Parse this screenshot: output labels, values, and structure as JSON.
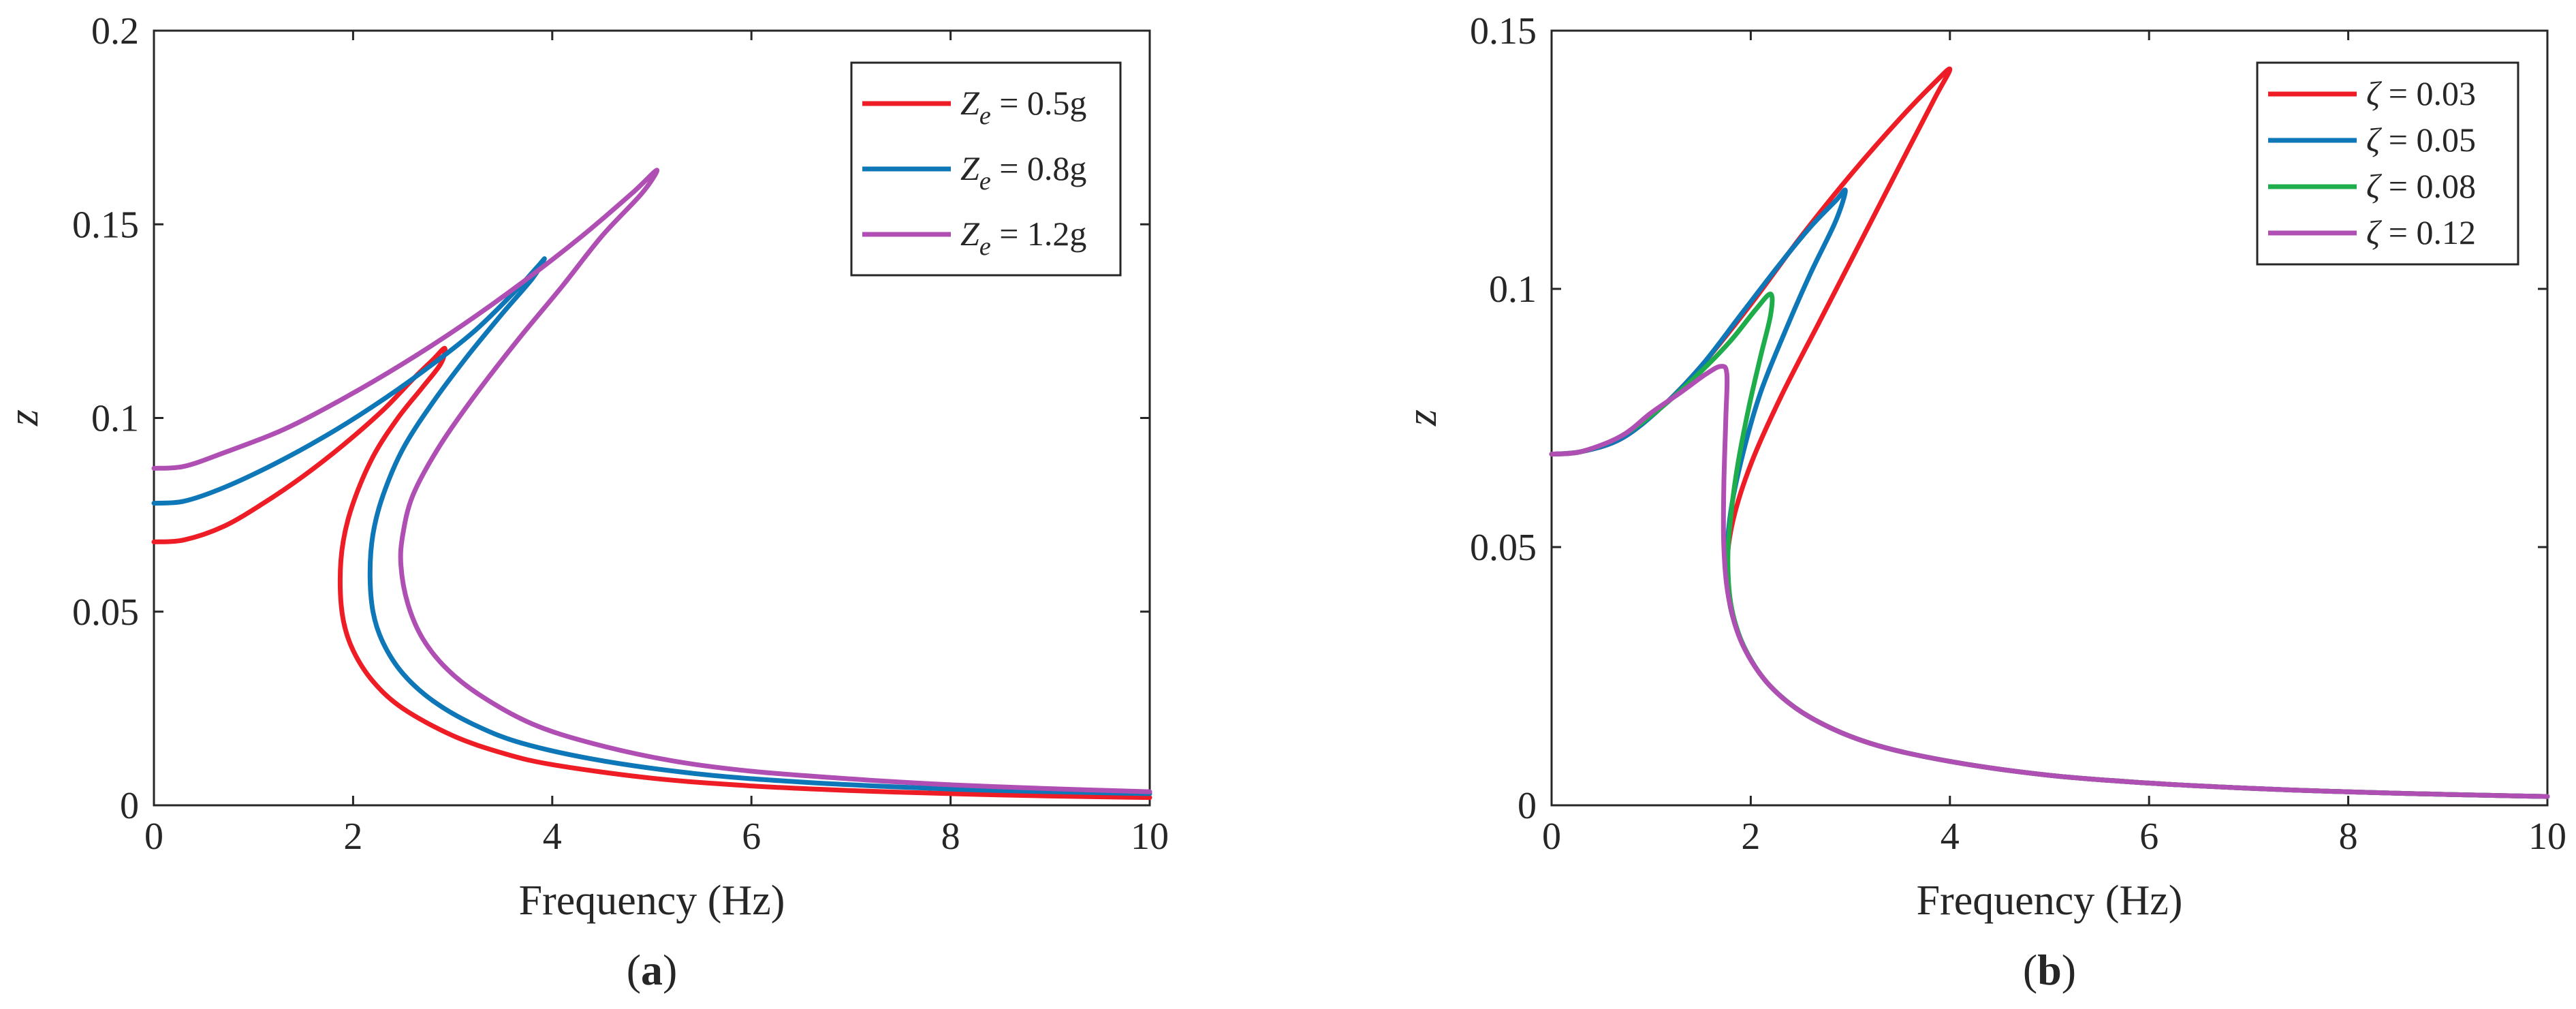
{
  "colors": {
    "red": "#ee1c25",
    "blue": "#0d77b7",
    "green": "#1fad4b",
    "purple": "#b04fb3"
  },
  "chart_data": [
    {
      "type": "line",
      "panel_label": "a",
      "xlabel": "Frequency (Hz)",
      "ylabel": "z",
      "xlim": [
        0,
        10
      ],
      "ylim": [
        0,
        0.2
      ],
      "xticks": [
        "0",
        "2",
        "4",
        "6",
        "8",
        "10"
      ],
      "yticks": [
        "0",
        "0.05",
        "0.1",
        "0.15",
        "0.2"
      ],
      "grid": false,
      "legend_position": "top-right",
      "series": [
        {
          "name": "Z_e = 0.5g",
          "legend_main": "Z",
          "legend_sub": "e",
          "legend_rest": " = 0.5g",
          "color": "#ee1c25",
          "points": [
            [
              0,
              0.068
            ],
            [
              0.3,
              0.0685
            ],
            [
              0.7,
              0.072
            ],
            [
              1.1,
              0.078
            ],
            [
              1.5,
              0.085
            ],
            [
              1.9,
              0.093
            ],
            [
              2.3,
              0.102
            ],
            [
              2.6,
              0.11
            ],
            [
              2.8,
              0.115
            ],
            [
              2.92,
              0.118
            ],
            [
              2.88,
              0.114
            ],
            [
              2.7,
              0.108
            ],
            [
              2.45,
              0.1
            ],
            [
              2.2,
              0.09
            ],
            [
              2.0,
              0.078
            ],
            [
              1.9,
              0.068
            ],
            [
              1.87,
              0.058
            ],
            [
              1.9,
              0.048
            ],
            [
              2.0,
              0.04
            ],
            [
              2.2,
              0.032
            ],
            [
              2.5,
              0.025
            ],
            [
              3.0,
              0.018
            ],
            [
              3.5,
              0.0135
            ],
            [
              4.0,
              0.0105
            ],
            [
              5.0,
              0.007
            ],
            [
              6.0,
              0.005
            ],
            [
              7.0,
              0.0038
            ],
            [
              8.0,
              0.003
            ],
            [
              9.0,
              0.0024
            ],
            [
              10.0,
              0.002
            ]
          ]
        },
        {
          "name": "Z_e = 0.8g",
          "legend_main": "Z",
          "legend_sub": "e",
          "legend_rest": " = 0.8g",
          "color": "#0d77b7",
          "points": [
            [
              0,
              0.078
            ],
            [
              0.3,
              0.0785
            ],
            [
              0.7,
              0.082
            ],
            [
              1.2,
              0.088
            ],
            [
              1.7,
              0.095
            ],
            [
              2.2,
              0.103
            ],
            [
              2.7,
              0.112
            ],
            [
              3.2,
              0.122
            ],
            [
              3.6,
              0.132
            ],
            [
              3.85,
              0.139
            ],
            [
              3.92,
              0.141
            ],
            [
              3.8,
              0.136
            ],
            [
              3.5,
              0.127
            ],
            [
              3.15,
              0.116
            ],
            [
              2.8,
              0.104
            ],
            [
              2.5,
              0.092
            ],
            [
              2.3,
              0.08
            ],
            [
              2.2,
              0.07
            ],
            [
              2.17,
              0.06
            ],
            [
              2.2,
              0.05
            ],
            [
              2.3,
              0.042
            ],
            [
              2.5,
              0.034
            ],
            [
              2.8,
              0.027
            ],
            [
              3.2,
              0.021
            ],
            [
              3.7,
              0.016
            ],
            [
              4.5,
              0.0115
            ],
            [
              5.5,
              0.008
            ],
            [
              6.5,
              0.006
            ],
            [
              7.5,
              0.0047
            ],
            [
              8.5,
              0.0038
            ],
            [
              10.0,
              0.003
            ]
          ]
        },
        {
          "name": "Z_e = 1.2g",
          "legend_main": "Z",
          "legend_sub": "e",
          "legend_rest": " = 1.2g",
          "color": "#b04fb3",
          "points": [
            [
              0,
              0.087
            ],
            [
              0.3,
              0.0875
            ],
            [
              0.7,
              0.091
            ],
            [
              1.3,
              0.097
            ],
            [
              1.9,
              0.105
            ],
            [
              2.5,
              0.114
            ],
            [
              3.1,
              0.124
            ],
            [
              3.7,
              0.135
            ],
            [
              4.3,
              0.147
            ],
            [
              4.8,
              0.158
            ],
            [
              5.05,
              0.164
            ],
            [
              4.9,
              0.158
            ],
            [
              4.5,
              0.147
            ],
            [
              4.1,
              0.134
            ],
            [
              3.65,
              0.12
            ],
            [
              3.2,
              0.105
            ],
            [
              2.85,
              0.092
            ],
            [
              2.6,
              0.08
            ],
            [
              2.5,
              0.07
            ],
            [
              2.48,
              0.062
            ],
            [
              2.55,
              0.052
            ],
            [
              2.7,
              0.043
            ],
            [
              2.95,
              0.035
            ],
            [
              3.3,
              0.028
            ],
            [
              3.8,
              0.021
            ],
            [
              4.4,
              0.016
            ],
            [
              5.2,
              0.0115
            ],
            [
              6.0,
              0.0088
            ],
            [
              7.0,
              0.0068
            ],
            [
              8.0,
              0.0053
            ],
            [
              9.0,
              0.0043
            ],
            [
              10.0,
              0.0035
            ]
          ]
        }
      ]
    },
    {
      "type": "line",
      "panel_label": "b",
      "xlabel": "Frequency (Hz)",
      "ylabel": "z",
      "xlim": [
        0,
        10
      ],
      "ylim": [
        0,
        0.15
      ],
      "xticks": [
        "0",
        "2",
        "4",
        "6",
        "8",
        "10"
      ],
      "yticks": [
        "0",
        "0.05",
        "0.1",
        "0.15"
      ],
      "grid": false,
      "legend_position": "top-right",
      "series": [
        {
          "name": "ζ = 0.03",
          "legend_main": "ζ",
          "legend_sub": "",
          "legend_rest": " = 0.03",
          "color": "#ee1c25",
          "points": [
            [
              0,
              0.068
            ],
            [
              0.3,
              0.0685
            ],
            [
              0.7,
              0.071
            ],
            [
              1.1,
              0.077
            ],
            [
              1.5,
              0.085
            ],
            [
              2.0,
              0.097
            ],
            [
              2.5,
              0.11
            ],
            [
              3.0,
              0.122
            ],
            [
              3.5,
              0.133
            ],
            [
              3.85,
              0.14
            ],
            [
              4.0,
              0.1425
            ],
            [
              3.85,
              0.137
            ],
            [
              3.5,
              0.124
            ],
            [
              3.1,
              0.109
            ],
            [
              2.7,
              0.094
            ],
            [
              2.3,
              0.079
            ],
            [
              2.0,
              0.066
            ],
            [
              1.82,
              0.055
            ],
            [
              1.76,
              0.046
            ],
            [
              1.8,
              0.038
            ],
            [
              1.95,
              0.03
            ],
            [
              2.2,
              0.023
            ],
            [
              2.6,
              0.017
            ],
            [
              3.2,
              0.012
            ],
            [
              4.0,
              0.0085
            ],
            [
              5.0,
              0.0058
            ],
            [
              6.0,
              0.0043
            ],
            [
              7.0,
              0.0033
            ],
            [
              8.0,
              0.0026
            ],
            [
              9.0,
              0.0021
            ],
            [
              10.0,
              0.0017
            ]
          ]
        },
        {
          "name": "ζ = 0.05",
          "legend_main": "ζ",
          "legend_sub": "",
          "legend_rest": " = 0.05",
          "color": "#0d77b7",
          "points": [
            [
              0,
              0.068
            ],
            [
              0.3,
              0.0685
            ],
            [
              0.7,
              0.071
            ],
            [
              1.1,
              0.077
            ],
            [
              1.5,
              0.085
            ],
            [
              1.9,
              0.095
            ],
            [
              2.3,
              0.105
            ],
            [
              2.6,
              0.112
            ],
            [
              2.85,
              0.117
            ],
            [
              2.95,
              0.119
            ],
            [
              2.85,
              0.113
            ],
            [
              2.6,
              0.103
            ],
            [
              2.35,
              0.092
            ],
            [
              2.1,
              0.08
            ],
            [
              1.92,
              0.068
            ],
            [
              1.8,
              0.057
            ],
            [
              1.76,
              0.047
            ],
            [
              1.8,
              0.038
            ],
            [
              1.95,
              0.03
            ],
            [
              2.2,
              0.023
            ],
            [
              2.6,
              0.017
            ],
            [
              3.2,
              0.012
            ],
            [
              4.0,
              0.0085
            ],
            [
              5.0,
              0.0058
            ],
            [
              6.0,
              0.0043
            ],
            [
              7.0,
              0.0033
            ],
            [
              8.0,
              0.0026
            ],
            [
              9.0,
              0.0021
            ],
            [
              10.0,
              0.0017
            ]
          ]
        },
        {
          "name": "ζ = 0.08",
          "legend_main": "ζ",
          "legend_sub": "",
          "legend_rest": " = 0.08",
          "color": "#1fad4b",
          "points": [
            [
              0,
              0.068
            ],
            [
              0.3,
              0.0685
            ],
            [
              0.7,
              0.0715
            ],
            [
              1.1,
              0.077
            ],
            [
              1.5,
              0.084
            ],
            [
              1.8,
              0.09
            ],
            [
              2.05,
              0.096
            ],
            [
              2.2,
              0.099
            ],
            [
              2.2,
              0.095
            ],
            [
              2.1,
              0.087
            ],
            [
              1.98,
              0.077
            ],
            [
              1.87,
              0.066
            ],
            [
              1.8,
              0.056
            ],
            [
              1.77,
              0.047
            ],
            [
              1.81,
              0.038
            ],
            [
              1.95,
              0.03
            ],
            [
              2.2,
              0.023
            ],
            [
              2.6,
              0.017
            ],
            [
              3.2,
              0.012
            ],
            [
              4.0,
              0.0085
            ],
            [
              5.0,
              0.0058
            ],
            [
              6.0,
              0.0043
            ],
            [
              7.0,
              0.0033
            ],
            [
              8.0,
              0.0026
            ],
            [
              9.0,
              0.0021
            ],
            [
              10.0,
              0.0017
            ]
          ]
        },
        {
          "name": "ζ = 0.12",
          "legend_main": "ζ",
          "legend_sub": "",
          "legend_rest": " = 0.12",
          "color": "#b04fb3",
          "points": [
            [
              0,
              0.068
            ],
            [
              0.3,
              0.0685
            ],
            [
              0.7,
              0.0715
            ],
            [
              1.0,
              0.076
            ],
            [
              1.3,
              0.08
            ],
            [
              1.55,
              0.0835
            ],
            [
              1.7,
              0.085
            ],
            [
              1.76,
              0.0835
            ],
            [
              1.75,
              0.075
            ],
            [
              1.73,
              0.062
            ],
            [
              1.73,
              0.05
            ],
            [
              1.78,
              0.04
            ],
            [
              1.92,
              0.031
            ],
            [
              2.2,
              0.023
            ],
            [
              2.6,
              0.017
            ],
            [
              3.2,
              0.012
            ],
            [
              4.0,
              0.0085
            ],
            [
              5.0,
              0.0058
            ],
            [
              6.0,
              0.0043
            ],
            [
              7.0,
              0.0033
            ],
            [
              8.0,
              0.0026
            ],
            [
              9.0,
              0.0021
            ],
            [
              10.0,
              0.0017
            ]
          ]
        }
      ]
    }
  ]
}
